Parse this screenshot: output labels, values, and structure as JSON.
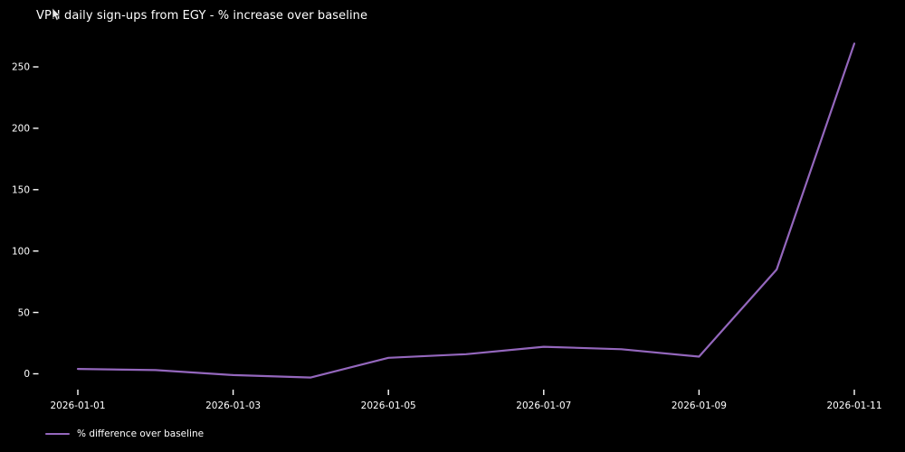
{
  "chart_data": {
    "type": "line",
    "title": "VPN daily sign-ups from EGY - % increase over baseline",
    "x": [
      "2026-01-01",
      "2026-01-02",
      "2026-01-03",
      "2026-01-04",
      "2026-01-05",
      "2026-01-06",
      "2026-01-07",
      "2026-01-08",
      "2026-01-09",
      "2026-01-10",
      "2026-01-11"
    ],
    "series": [
      {
        "name": "% difference over baseline",
        "color": "#9467bd",
        "values": [
          4,
          3,
          -1,
          -3,
          13,
          16,
          22,
          20,
          14,
          85,
          269
        ]
      }
    ],
    "xlabel": "",
    "ylabel": "",
    "yticks": [
      0,
      50,
      100,
      150,
      200,
      250
    ],
    "xticks": [
      "2026-01-01",
      "2026-01-03",
      "2026-01-05",
      "2026-01-07",
      "2026-01-09",
      "2026-01-11"
    ],
    "ylim": [
      -17,
      282
    ],
    "grid": false,
    "legend_position": "lower-left-below-axis",
    "background_color": "#000000",
    "text_color": "#ffffff"
  },
  "icons": {
    "cursor": "arrow-cursor-icon"
  }
}
